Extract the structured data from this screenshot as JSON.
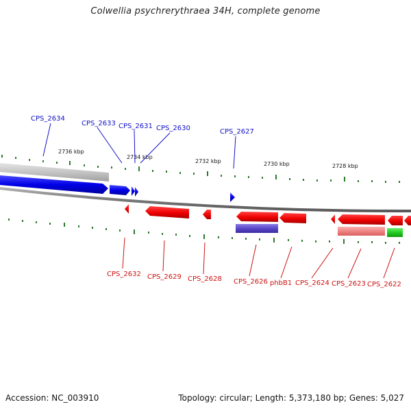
{
  "title": "Colwellia psychrerythraea 34H, complete genome",
  "footer": {
    "accession": "Accession: NC_003910",
    "topology": "Topology: circular; Length: 5,373,180 bp; Genes: 5,027"
  },
  "colors": {
    "forward_gene": "#1010e0",
    "reverse_gene": "#ee1111",
    "top_label": "#1010c8",
    "bottom_label": "#cc1010",
    "tick": "#2a7a2a",
    "backbone": "#888888",
    "rna_purple": "#6a5acd",
    "rna_pink": "#f08a8a",
    "rna_green": "#33cc33",
    "rna_gray": "#c0c0c0"
  },
  "kbp_labels": [
    "2736 kbp",
    "2734 kbp",
    "2732 kbp",
    "2730 kbp",
    "2728 kbp"
  ],
  "top_genes": [
    "CPS_2634",
    "CPS_2633",
    "CPS_2631",
    "CPS_2630",
    "CPS_2627"
  ],
  "bottom_genes": [
    "CPS_2632",
    "CPS_2629",
    "CPS_2628",
    "CPS_2626",
    "phbB1",
    "CPS_2624",
    "CPS_2623",
    "CPS_2622"
  ]
}
